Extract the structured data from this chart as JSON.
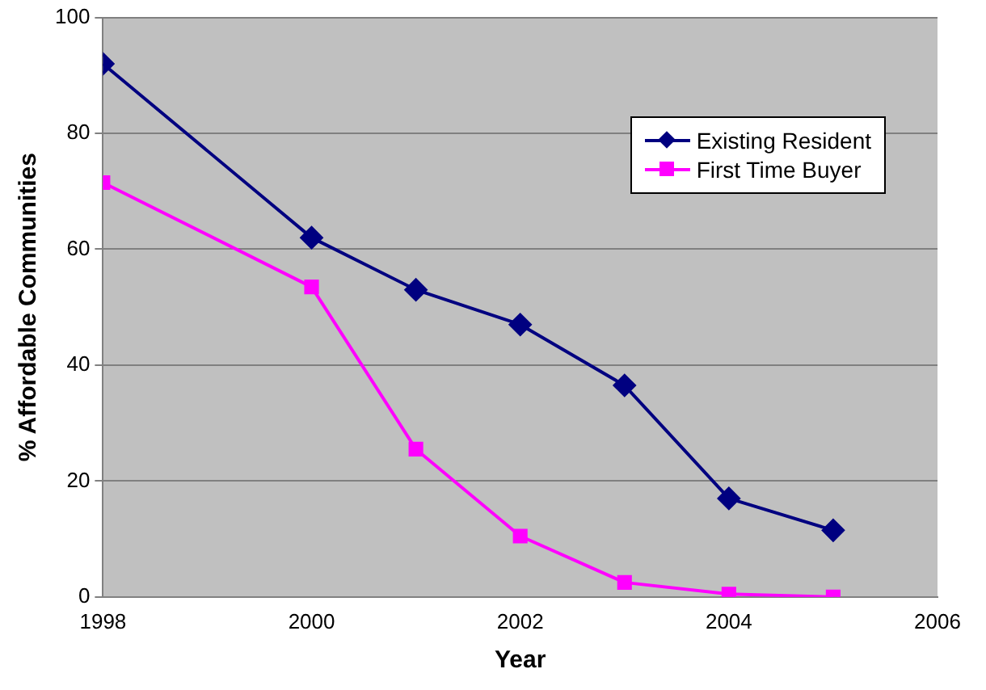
{
  "chart_data": {
    "type": "line",
    "xlabel": "Year",
    "ylabel": "% Affordable Communities",
    "x": [
      1998,
      2000,
      2001,
      2002,
      2003,
      2004,
      2005
    ],
    "series": [
      {
        "name": "Existing Resident",
        "color": "#000080",
        "marker": "diamond",
        "values": [
          92,
          62,
          53,
          47,
          36.5,
          17,
          11.5
        ]
      },
      {
        "name": "First Time Buyer",
        "color": "#ff00ff",
        "marker": "square",
        "values": [
          71.5,
          53.5,
          25.5,
          10.5,
          2.5,
          0.5,
          0
        ]
      }
    ],
    "xlim": [
      1998,
      2006
    ],
    "xticks": [
      1998,
      2000,
      2002,
      2004,
      2006
    ],
    "ylim": [
      0,
      100
    ],
    "yticks": [
      0,
      20,
      40,
      60,
      80,
      100
    ],
    "grid": "y",
    "legend": "top right",
    "line_style": "solid"
  }
}
